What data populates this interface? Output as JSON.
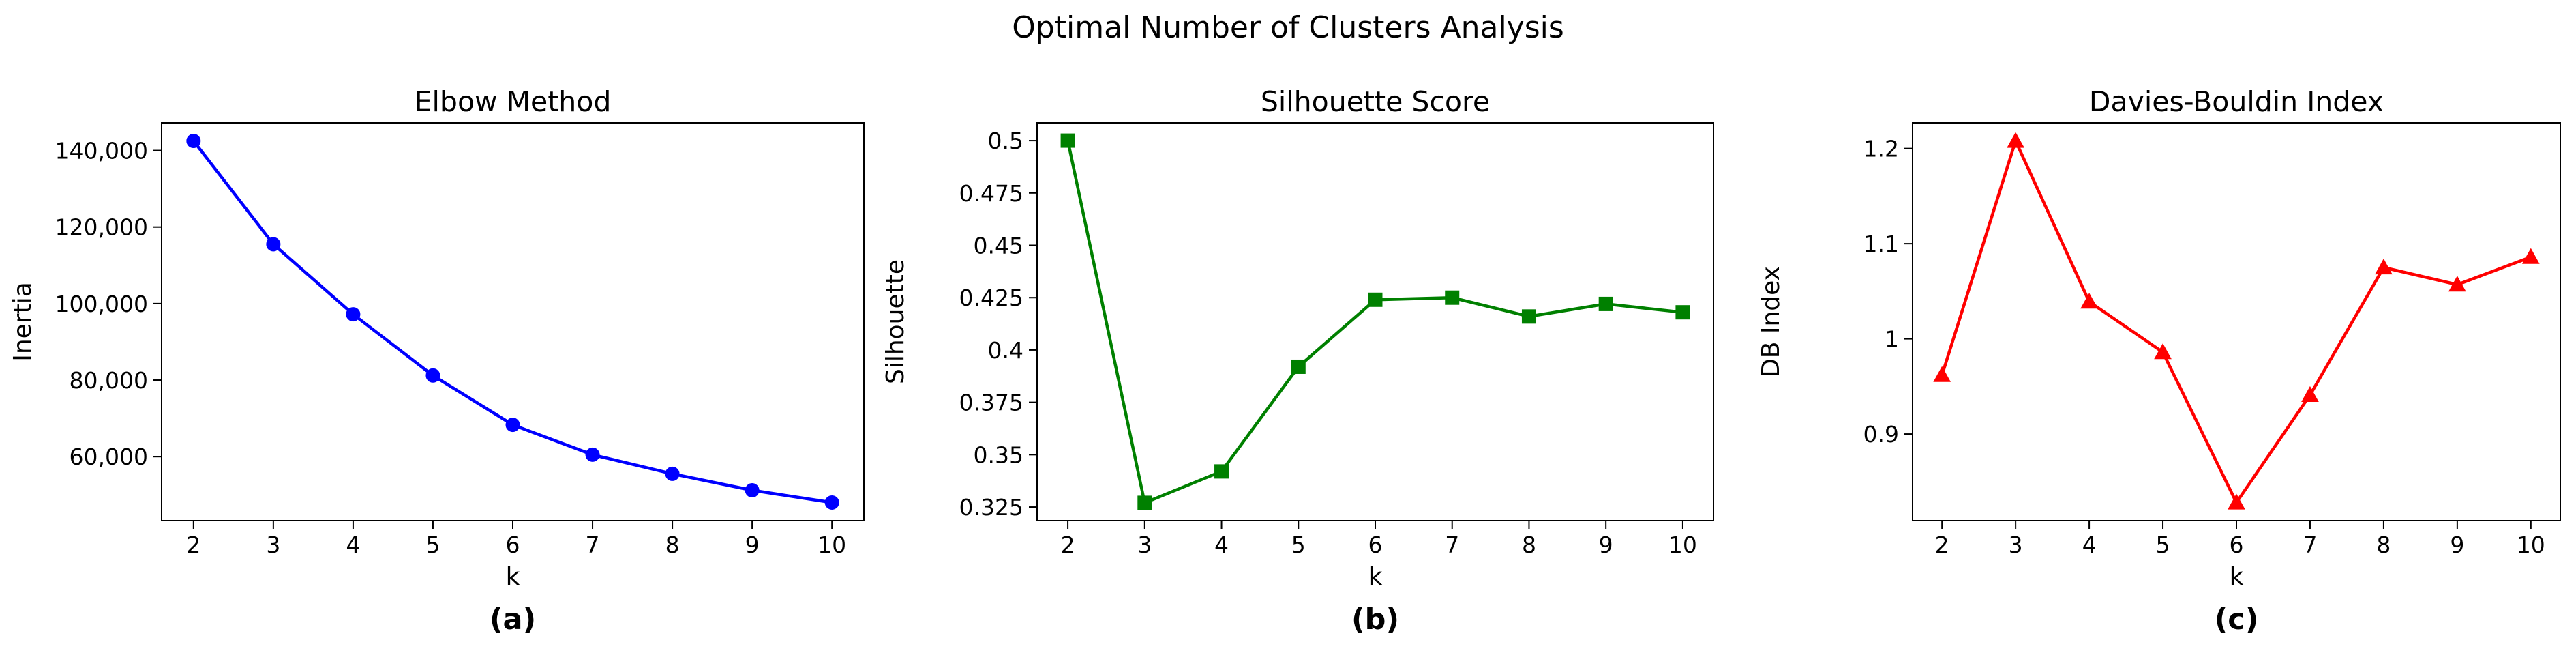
{
  "figure": {
    "suptitle": "Optimal Number of Clusters Analysis"
  },
  "chart_data": [
    {
      "type": "line",
      "title": "Elbow Method",
      "xlabel": "k",
      "ylabel": "Inertia",
      "sublabel": "(a)",
      "x": [
        2,
        3,
        4,
        5,
        6,
        7,
        8,
        9,
        10
      ],
      "series": [
        {
          "values": [
            142500,
            115500,
            97200,
            81200,
            68300,
            60500,
            55500,
            51200,
            48000
          ],
          "color": "#0000ff",
          "marker": "circle"
        }
      ],
      "xlim": [
        1.6,
        10.4
      ],
      "ylim": [
        43270,
        147230
      ],
      "xticks": [
        2,
        3,
        4,
        5,
        6,
        7,
        8,
        9,
        10
      ],
      "yticks": [
        60000,
        80000,
        100000,
        120000,
        140000
      ],
      "yticklabels": [
        "60,000",
        "80,000",
        "100,000",
        "120,000",
        "140,000"
      ],
      "grid": false
    },
    {
      "type": "line",
      "title": "Silhouette Score",
      "xlabel": "k",
      "ylabel": "Silhouette",
      "sublabel": "(b)",
      "x": [
        2,
        3,
        4,
        5,
        6,
        7,
        8,
        9,
        10
      ],
      "series": [
        {
          "values": [
            0.5,
            0.327,
            0.342,
            0.392,
            0.424,
            0.425,
            0.416,
            0.422,
            0.418
          ],
          "color": "#008000",
          "marker": "square"
        }
      ],
      "xlim": [
        1.6,
        10.4
      ],
      "ylim": [
        0.3185,
        0.5085
      ],
      "xticks": [
        2,
        3,
        4,
        5,
        6,
        7,
        8,
        9,
        10
      ],
      "yticks": [
        0.325,
        0.35,
        0.375,
        0.4,
        0.425,
        0.45,
        0.475,
        0.5
      ],
      "yticklabels": [
        "0.325",
        "0.35",
        "0.375",
        "0.4",
        "0.425",
        "0.45",
        "0.475",
        "0.5"
      ],
      "grid": false
    },
    {
      "type": "line",
      "title": "Davies-Bouldin Index",
      "xlabel": "k",
      "ylabel": "DB Index",
      "sublabel": "(c)",
      "x": [
        2,
        3,
        4,
        5,
        6,
        7,
        8,
        9,
        10
      ],
      "series": [
        {
          "values": [
            0.962,
            1.208,
            1.039,
            0.986,
            0.828,
            0.941,
            1.075,
            1.057,
            1.086
          ],
          "color": "#ff0000",
          "marker": "triangle"
        }
      ],
      "xlim": [
        1.6,
        10.4
      ],
      "ylim": [
        0.809,
        1.227
      ],
      "xticks": [
        2,
        3,
        4,
        5,
        6,
        7,
        8,
        9,
        10
      ],
      "yticks": [
        0.9,
        1,
        1.1,
        1.2
      ],
      "yticklabels": [
        "0.9",
        "1",
        "1.1",
        "1.2"
      ],
      "grid": false
    }
  ]
}
